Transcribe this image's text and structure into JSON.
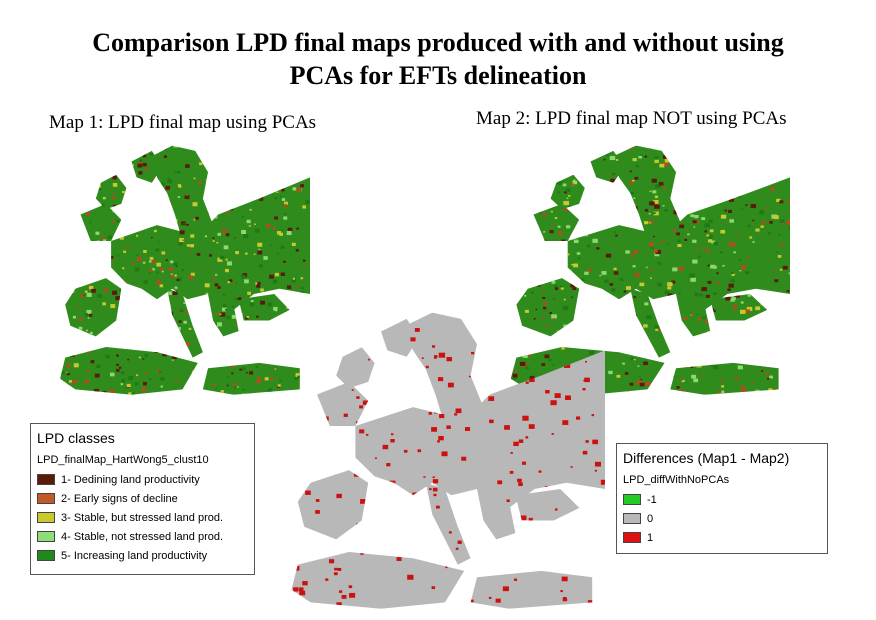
{
  "title_line1": "Comparison LPD final maps produced with and without using",
  "title_line2": "PCAs for EFTs delineation",
  "map1": {
    "label": "Map 1: LPD final map using PCAs",
    "base_color": "#2e8b1c",
    "speckle_colors": [
      "#5c1a0c",
      "#b34d1f",
      "#c8c830",
      "#8ed870",
      "#1e7a14"
    ]
  },
  "map2": {
    "label": "Map 2: LPD final map NOT using PCAs",
    "base_color": "#2e8b1c",
    "speckle_colors": [
      "#5c1a0c",
      "#b34d1f",
      "#c8c830",
      "#8ed870",
      "#1e7a14"
    ]
  },
  "map3": {
    "base_color": "#b8b8b8",
    "speckle_colors": [
      "#cc1111"
    ]
  },
  "legend1": {
    "title": "LPD classes",
    "layer": "LPD_finalMap_HartWong5_clust10",
    "items": [
      {
        "label": "1- Dedining land productivity",
        "color": "#5c1a0c"
      },
      {
        "label": "2- Early signs of decline",
        "color": "#c05a28"
      },
      {
        "label": "3- Stable, but stressed land prod.",
        "color": "#c8c830"
      },
      {
        "label": "4- Stable, not stressed land prod.",
        "color": "#90dc78"
      },
      {
        "label": "5- Increasing land productivity",
        "color": "#1e8a1e"
      }
    ]
  },
  "legend2": {
    "title": "Differences (Map1 - Map2)",
    "layer": "LPD_diffWithNoPCAs",
    "items": [
      {
        "label": "-1",
        "color": "#22cc22"
      },
      {
        "label": "0",
        "color": "#b8b8b8"
      },
      {
        "label": "1",
        "color": "#dd1111"
      }
    ]
  }
}
